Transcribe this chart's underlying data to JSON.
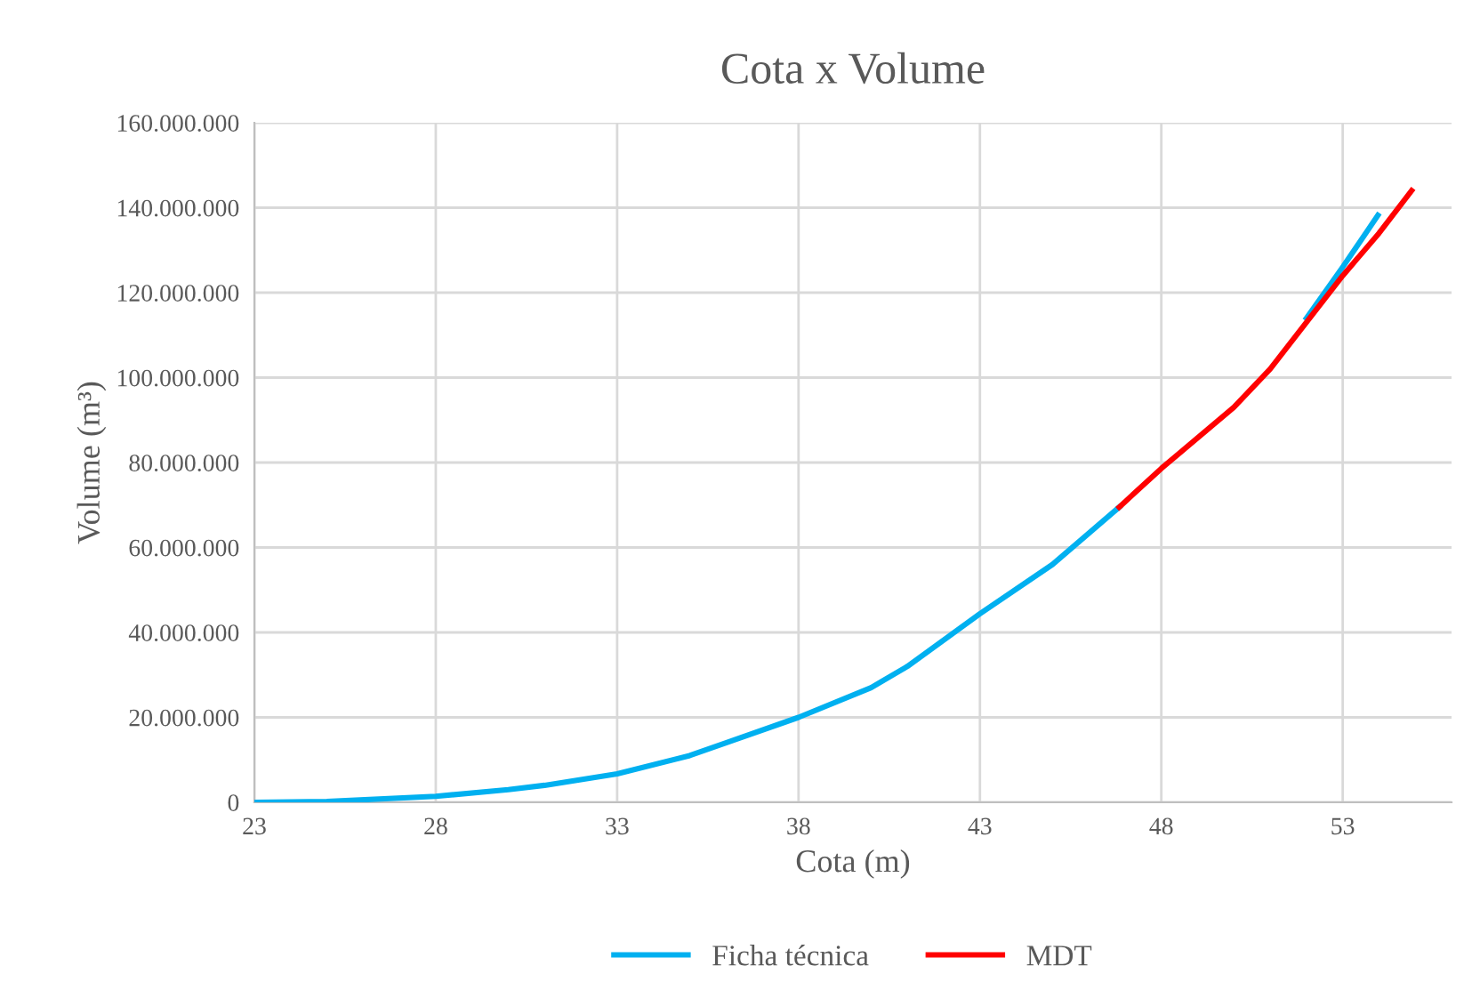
{
  "chart_data": {
    "type": "line",
    "title": "Cota x Volume",
    "xlabel": "Cota (m)",
    "ylabel": "Volume (m³)",
    "series": [
      {
        "name": "Ficha técnica",
        "color": "#00b0f0",
        "x": [
          23,
          25,
          28,
          30,
          31,
          33,
          35,
          36,
          38,
          40,
          41,
          43,
          45,
          46.84,
          48,
          50,
          51,
          52,
          53,
          53.97
        ],
        "values": [
          0,
          200000,
          1400000,
          3000000,
          4000000,
          6700000,
          11000000,
          14000000,
          20000000,
          27000000,
          32000000,
          44400000,
          56000000,
          69500000,
          null,
          null,
          null,
          114000000,
          126000000,
          138200000
        ]
      },
      {
        "name": "MDT",
        "color": "#ff0000",
        "x": [
          46.84,
          48,
          50,
          51,
          52,
          53,
          54,
          54.9
        ],
        "values": [
          69500000,
          78600000,
          93000000,
          102000000,
          113000000,
          124000000,
          134000000,
          144000000
        ]
      }
    ],
    "xlim": [
      23,
      56
    ],
    "xticks": [
      23,
      28,
      33,
      38,
      43,
      48,
      53
    ],
    "ylim": [
      0,
      160000000
    ],
    "yticks": [
      {
        "value": 0,
        "label": "0"
      },
      {
        "value": 20000000,
        "label": "20.000.000"
      },
      {
        "value": 40000000,
        "label": "40.000.000"
      },
      {
        "value": 60000000,
        "label": "60.000.000"
      },
      {
        "value": 80000000,
        "label": "80.000.000"
      },
      {
        "value": 100000000,
        "label": "100.000.000"
      },
      {
        "value": 120000000,
        "label": "120.000.000"
      },
      {
        "value": 140000000,
        "label": "140.000.000"
      },
      {
        "value": 160000000,
        "label": "160.000.000"
      }
    ],
    "grid": true,
    "legend": "bottom",
    "marker": "none",
    "line_style": "solid"
  }
}
